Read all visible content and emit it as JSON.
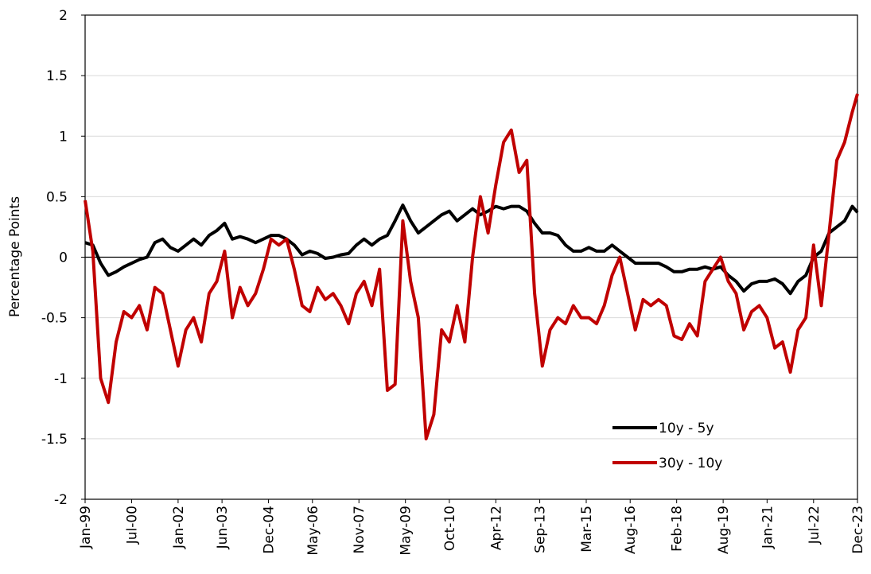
{
  "chart_data": {
    "type": "line",
    "y_label": "Percentage Points",
    "ylim": [
      -2,
      2
    ],
    "yticks": [
      -2,
      -1.5,
      -1,
      -0.5,
      0,
      0.5,
      1,
      1.5,
      2
    ],
    "grid": true,
    "legend": "lower right",
    "xticks": [
      "Jan-99",
      "Jul-00",
      "Jan-02",
      "Jun-03",
      "Dec-04",
      "May-06",
      "Nov-07",
      "May-09",
      "Oct-10",
      "Apr-12",
      "Sep-13",
      "Mar-15",
      "Aug-16",
      "Feb-18",
      "Aug-19",
      "Jan-21",
      "Jul-22",
      "Dec-23"
    ],
    "x": [
      "Jan-99",
      "Apr-99",
      "Jul-99",
      "Oct-99",
      "Jan-00",
      "Apr-00",
      "Jul-00",
      "Oct-00",
      "Jan-01",
      "Apr-01",
      "Jul-01",
      "Oct-01",
      "Jan-02",
      "Apr-02",
      "Jul-02",
      "Oct-02",
      "Jan-03",
      "Apr-03",
      "Jul-03",
      "Oct-03",
      "Jan-04",
      "Apr-04",
      "Jul-04",
      "Oct-04",
      "Jan-05",
      "Apr-05",
      "Jul-05",
      "Oct-05",
      "Jan-06",
      "Apr-06",
      "Jul-06",
      "Oct-06",
      "Jan-07",
      "Apr-07",
      "Jul-07",
      "Oct-07",
      "Jan-08",
      "Apr-08",
      "Jul-08",
      "Oct-08",
      "Jan-09",
      "Apr-09",
      "Jul-09",
      "Oct-09",
      "Jan-10",
      "Apr-10",
      "Jul-10",
      "Oct-10",
      "Jan-11",
      "Apr-11",
      "Jul-11",
      "Oct-11",
      "Jan-12",
      "Apr-12",
      "Jul-12",
      "Oct-12",
      "Jan-13",
      "Apr-13",
      "Jul-13",
      "Oct-13",
      "Jan-14",
      "Apr-14",
      "Jul-14",
      "Oct-14",
      "Jan-15",
      "Apr-15",
      "Jul-15",
      "Oct-15",
      "Jan-16",
      "Apr-16",
      "Jul-16",
      "Oct-16",
      "Jan-17",
      "Apr-17",
      "Jul-17",
      "Oct-17",
      "Jan-18",
      "Apr-18",
      "Jul-18",
      "Oct-18",
      "Jan-19",
      "Apr-19",
      "Jul-19",
      "Oct-19",
      "Jan-20",
      "Apr-20",
      "Jul-20",
      "Oct-20",
      "Jan-21",
      "Apr-21",
      "Jul-21",
      "Oct-21",
      "Jan-22",
      "Apr-22",
      "Jul-22",
      "Oct-22",
      "Jan-23",
      "Apr-23",
      "Jul-23",
      "Oct-23",
      "Dec-23"
    ],
    "series": [
      {
        "name": "10y - 5y",
        "color": "#000000",
        "values": [
          0.12,
          0.1,
          -0.05,
          -0.15,
          -0.12,
          -0.08,
          -0.05,
          -0.02,
          0.0,
          0.12,
          0.15,
          0.08,
          0.05,
          0.1,
          0.15,
          0.1,
          0.18,
          0.22,
          0.28,
          0.15,
          0.17,
          0.15,
          0.12,
          0.15,
          0.18,
          0.18,
          0.15,
          0.1,
          0.02,
          0.05,
          0.03,
          -0.01,
          0.0,
          0.02,
          0.03,
          0.1,
          0.15,
          0.1,
          0.15,
          0.18,
          0.3,
          0.43,
          0.3,
          0.2,
          0.25,
          0.3,
          0.35,
          0.38,
          0.3,
          0.35,
          0.4,
          0.35,
          0.38,
          0.42,
          0.4,
          0.42,
          0.42,
          0.38,
          0.28,
          0.2,
          0.2,
          0.18,
          0.1,
          0.05,
          0.05,
          0.08,
          0.05,
          0.05,
          0.1,
          0.05,
          0.0,
          -0.05,
          -0.05,
          -0.05,
          -0.05,
          -0.08,
          -0.12,
          -0.12,
          -0.1,
          -0.1,
          -0.08,
          -0.1,
          -0.08,
          -0.15,
          -0.2,
          -0.28,
          -0.22,
          -0.2,
          -0.2,
          -0.18,
          -0.22,
          -0.3,
          -0.2,
          -0.15,
          0.0,
          0.05,
          0.2,
          0.25,
          0.3,
          0.42,
          0.37
        ]
      },
      {
        "name": "30y - 10y",
        "color": "#c00000",
        "values": [
          0.47,
          0.05,
          -1.0,
          -1.2,
          -0.7,
          -0.45,
          -0.5,
          -0.4,
          -0.6,
          -0.25,
          -0.3,
          -0.6,
          -0.9,
          -0.6,
          -0.5,
          -0.7,
          -0.3,
          -0.2,
          0.05,
          -0.5,
          -0.25,
          -0.4,
          -0.3,
          -0.1,
          0.15,
          0.1,
          0.15,
          -0.1,
          -0.4,
          -0.45,
          -0.25,
          -0.35,
          -0.3,
          -0.4,
          -0.55,
          -0.3,
          -0.2,
          -0.4,
          -0.1,
          -1.1,
          -1.05,
          0.3,
          -0.2,
          -0.5,
          -1.5,
          -1.3,
          -0.6,
          -0.7,
          -0.4,
          -0.7,
          0.0,
          0.5,
          0.2,
          0.6,
          0.95,
          1.05,
          0.7,
          0.8,
          -0.3,
          -0.9,
          -0.6,
          -0.5,
          -0.55,
          -0.4,
          -0.5,
          -0.5,
          -0.55,
          -0.4,
          -0.15,
          0.0,
          -0.3,
          -0.6,
          -0.35,
          -0.4,
          -0.35,
          -0.4,
          -0.65,
          -0.68,
          -0.55,
          -0.65,
          -0.2,
          -0.1,
          0.0,
          -0.2,
          -0.3,
          -0.6,
          -0.45,
          -0.4,
          -0.5,
          -0.75,
          -0.7,
          -0.95,
          -0.6,
          -0.5,
          0.1,
          -0.4,
          0.2,
          0.8,
          0.95,
          1.2,
          1.35
        ]
      }
    ]
  }
}
